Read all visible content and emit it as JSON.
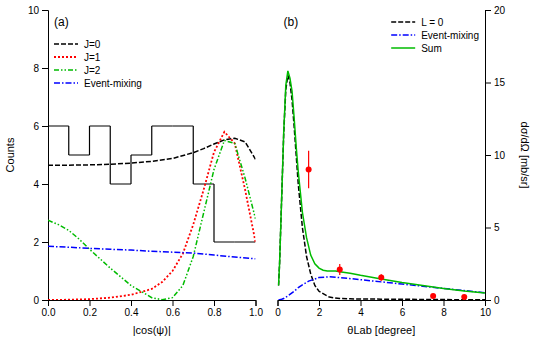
{
  "chart_data": [
    {
      "type": "line",
      "annotations": [
        "(a)"
      ],
      "xlabel": "|cos(ψ)|",
      "ylabel": "Counts",
      "xlim": [
        0.0,
        1.0
      ],
      "ylim": [
        0,
        10
      ],
      "xticks": [
        {
          "value": 0,
          "label": "0.0"
        },
        0.2,
        0.4,
        0.6,
        0.8,
        {
          "value": 1,
          "label": "1.0"
        }
      ],
      "yticks": [
        0,
        2,
        4,
        6,
        8,
        10
      ],
      "legend": "upper left",
      "series": [
        {
          "type": "histogram",
          "color": "#000000",
          "bins": [
            0.0,
            0.1,
            0.2,
            0.3,
            0.4,
            0.5,
            0.6,
            0.7,
            0.8,
            0.9,
            1.0
          ],
          "values": [
            6,
            5,
            6,
            4,
            5,
            6,
            6,
            4,
            2,
            2
          ]
        },
        {
          "type": "line",
          "name": "J=0",
          "color": "#000000",
          "line_style": "dashed",
          "x": [
            0.0,
            0.05,
            0.1,
            0.2,
            0.3,
            0.4,
            0.5,
            0.6,
            0.7,
            0.75,
            0.8,
            0.85,
            0.9,
            0.95,
            1.0
          ],
          "values": [
            4.65,
            4.65,
            4.65,
            4.66,
            4.68,
            4.72,
            4.78,
            4.88,
            5.08,
            5.22,
            5.38,
            5.52,
            5.58,
            5.45,
            4.85
          ]
        },
        {
          "type": "line",
          "name": "J=1",
          "color": "#ff0000",
          "line_style": "dotted",
          "x": [
            0.0,
            0.1,
            0.2,
            0.3,
            0.4,
            0.5,
            0.55,
            0.6,
            0.65,
            0.7,
            0.75,
            0.8,
            0.85,
            0.9,
            0.95,
            1.0
          ],
          "values": [
            0.0,
            0.01,
            0.03,
            0.08,
            0.18,
            0.38,
            0.62,
            1.0,
            1.6,
            2.6,
            3.8,
            5.1,
            5.8,
            5.4,
            3.8,
            2.0
          ]
        },
        {
          "type": "line",
          "name": "J=2",
          "color": "#00bb00",
          "line_style": "dashdotdot",
          "x": [
            0.0,
            0.05,
            0.1,
            0.15,
            0.2,
            0.3,
            0.4,
            0.5,
            0.55,
            0.6,
            0.65,
            0.7,
            0.75,
            0.8,
            0.85,
            0.9,
            0.95,
            1.0
          ],
          "values": [
            2.75,
            2.6,
            2.4,
            2.1,
            1.75,
            1.1,
            0.5,
            0.08,
            0.01,
            0.08,
            0.5,
            1.5,
            3.0,
            4.5,
            5.5,
            5.4,
            4.2,
            2.8
          ]
        },
        {
          "type": "line",
          "name": "Event-mixing",
          "color": "#0000ff",
          "line_style": "dashdot",
          "x": [
            0.0,
            0.1,
            0.2,
            0.3,
            0.4,
            0.5,
            0.6,
            0.7,
            0.8,
            0.9,
            1.0
          ],
          "values": [
            1.85,
            1.82,
            1.78,
            1.75,
            1.72,
            1.68,
            1.65,
            1.62,
            1.55,
            1.48,
            1.42
          ]
        }
      ]
    },
    {
      "type": "line",
      "annotations": [
        "(b)"
      ],
      "xlabel": "θLab [degree]",
      "ylabel": "dσ/dΩ [mb/sr]",
      "xlim": [
        0,
        10
      ],
      "ylim": [
        0,
        20
      ],
      "xticks": [
        0,
        2,
        4,
        6,
        8,
        10
      ],
      "yticks": [
        0,
        5,
        10,
        15,
        20
      ],
      "legend": "upper right",
      "series": [
        {
          "type": "line",
          "name": "L = 0",
          "color": "#000000",
          "line_style": "dashed",
          "x": [
            0.05,
            0.1,
            0.2,
            0.3,
            0.4,
            0.5,
            0.6,
            0.7,
            0.8,
            0.9,
            1.0,
            1.2,
            1.4,
            1.6,
            1.8,
            2.0,
            2.5,
            3.0,
            3.5,
            4.0,
            5.0,
            6.0,
            7.0,
            8.0,
            9.0,
            10.0
          ],
          "values": [
            1.0,
            2.5,
            7.0,
            11.5,
            14.5,
            15.5,
            15.0,
            13.8,
            12.0,
            10.0,
            8.0,
            5.0,
            3.0,
            1.8,
            1.0,
            0.6,
            0.2,
            0.1,
            0.08,
            0.07,
            0.06,
            0.05,
            0.04,
            0.03,
            0.02,
            0.01
          ]
        },
        {
          "type": "line",
          "name": "Event-mixing",
          "color": "#0000ff",
          "line_style": "dashdot",
          "x": [
            0.05,
            0.1,
            0.2,
            0.3,
            0.5,
            0.8,
            1.0,
            1.2,
            1.5,
            2.0,
            2.5,
            3.0,
            4.0,
            5.0,
            6.0,
            7.0,
            8.0,
            9.0,
            10.0
          ],
          "values": [
            0.01,
            0.02,
            0.05,
            0.1,
            0.28,
            0.6,
            0.85,
            1.05,
            1.3,
            1.55,
            1.6,
            1.55,
            1.4,
            1.25,
            1.1,
            0.95,
            0.8,
            0.65,
            0.5
          ]
        },
        {
          "type": "line",
          "name": "Sum",
          "color": "#00bb00",
          "line_style": "solid",
          "x": [
            0.05,
            0.1,
            0.2,
            0.3,
            0.4,
            0.5,
            0.6,
            0.7,
            0.8,
            0.9,
            1.0,
            1.2,
            1.4,
            1.6,
            1.8,
            2.0,
            2.2,
            2.4,
            2.6,
            2.8,
            3.0,
            3.5,
            4.0,
            5.0,
            6.0,
            7.0,
            8.0,
            9.0,
            10.0
          ],
          "values": [
            1.0,
            2.5,
            7.0,
            11.6,
            14.8,
            15.8,
            15.3,
            14.4,
            12.6,
            10.6,
            8.85,
            6.05,
            4.3,
            3.1,
            2.5,
            2.2,
            2.05,
            2.0,
            2.0,
            2.0,
            1.95,
            1.85,
            1.7,
            1.45,
            1.2,
            1.0,
            0.8,
            0.62,
            0.48
          ]
        },
        {
          "type": "scatter",
          "color": "#ff0000",
          "marker": "circle",
          "x": [
            1.5,
            3.0,
            5.0,
            7.5,
            9.0
          ],
          "values": [
            9.0,
            2.1,
            1.55,
            0.28,
            0.2
          ],
          "errors": [
            1.3,
            0.38,
            0.22,
            0.1,
            0.09
          ]
        }
      ]
    }
  ]
}
